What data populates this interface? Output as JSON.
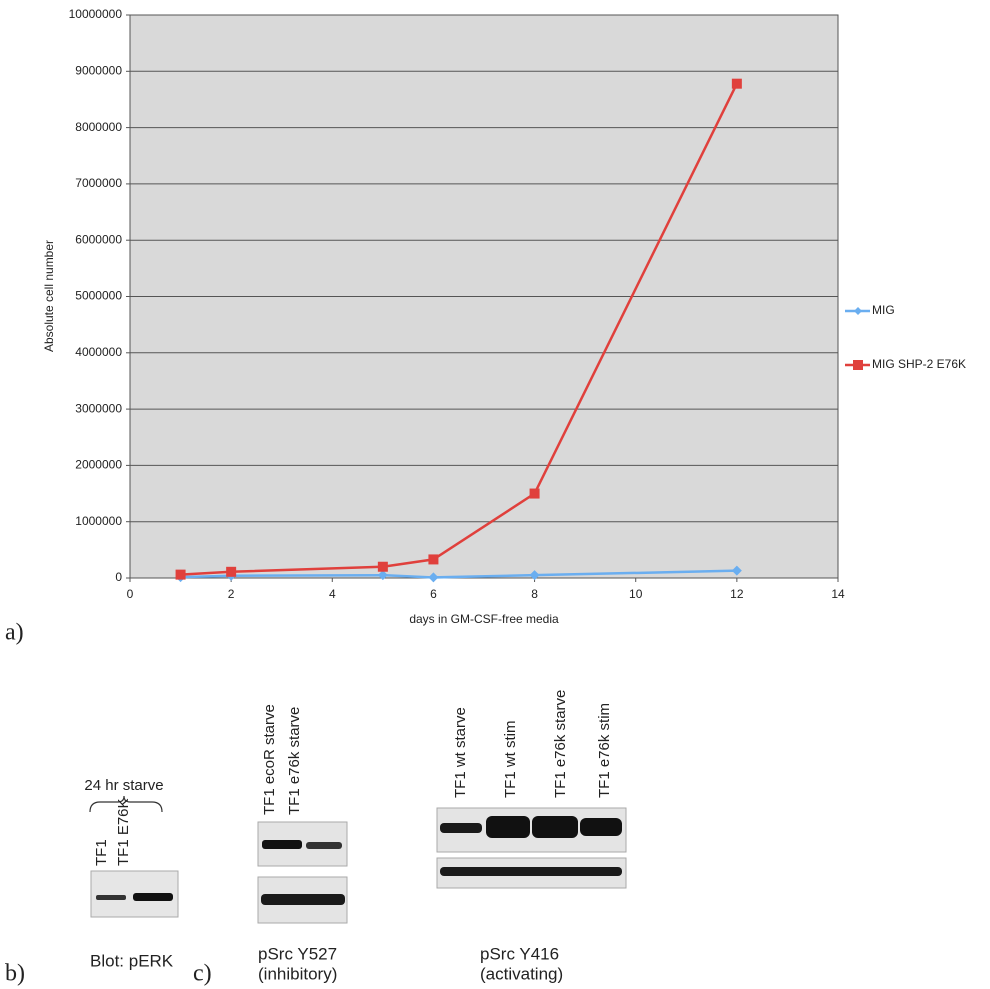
{
  "chart_data": {
    "type": "line",
    "x_label": "days in GM-CSF-free media",
    "y_label": "Absolute cell number",
    "x": [
      1,
      2,
      5,
      6,
      8,
      12
    ],
    "series": [
      {
        "name": "MIG",
        "color": "#6aaef0",
        "marker": "diamond",
        "values": [
          15000,
          40000,
          50000,
          10000,
          50000,
          130000
        ]
      },
      {
        "name": "MIG SHP-2 E76K",
        "color": "#e0403c",
        "marker": "square",
        "values": [
          60000,
          110000,
          200000,
          330000,
          1500000,
          8780000
        ]
      }
    ],
    "xlim": [
      0,
      14
    ],
    "xticks": [
      0,
      2,
      4,
      6,
      8,
      10,
      12,
      14
    ],
    "ylim": [
      0,
      10000000
    ],
    "yticks": [
      0,
      1000000,
      2000000,
      3000000,
      4000000,
      5000000,
      6000000,
      7000000,
      8000000,
      9000000,
      10000000
    ],
    "grid": true,
    "legend": "right",
    "plot_background": "#d9d9d9"
  },
  "panels": {
    "a": {
      "label": "a)"
    },
    "b": {
      "label": "b)",
      "group": "24 hr starve",
      "lanes": [
        "TF1",
        "TF1 E76K"
      ],
      "caption": "Blot: pERK"
    },
    "c": {
      "label": "c)",
      "blot1": {
        "lanes": [
          "TF1 ecoR starve",
          "TF1 e76k starve"
        ],
        "caption": [
          "pSrc Y527",
          "(inhibitory)"
        ]
      },
      "blot2": {
        "lanes": [
          "TF1 wt starve",
          "TF1 wt stim",
          "TF1 e76k starve",
          "TF1 e76k stim"
        ],
        "caption": [
          "pSrc Y416",
          "(activating)"
        ]
      }
    }
  }
}
